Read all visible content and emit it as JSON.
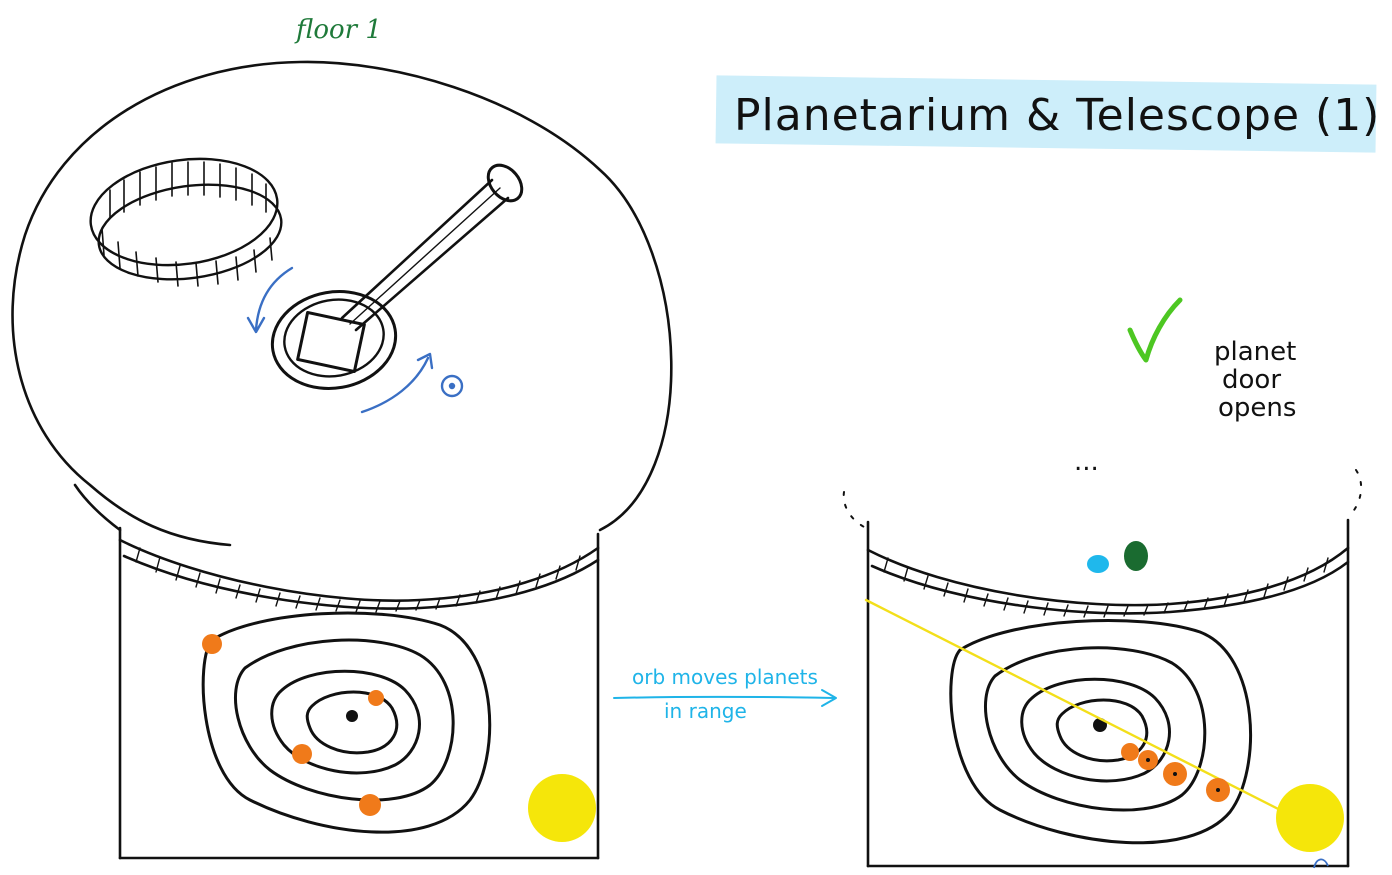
{
  "title": "Planetarium & Telescope (1)",
  "floor_label": "floor 1",
  "arrow_caption": {
    "line1": "orb moves planets",
    "line2": "in range"
  },
  "result_note": {
    "line1": "planet",
    "line2": "door",
    "line3": "opens"
  },
  "dots_label": "...",
  "colors": {
    "ink": "#111111",
    "floor_label": "#1f7a3a",
    "title_highlight": "#cdeefa",
    "rotation_arrows": "#3a6fc4",
    "caption": "#1fb4e8",
    "planet": "#f07a1a",
    "sun": "#f5e60a",
    "alignment_line": "#f3df1a",
    "checkmark": "#4dc722",
    "blue_dot": "#1fb8ec",
    "green_dot": "#1a6b30"
  },
  "icons": {
    "check": "check-icon",
    "rotation_left": "rotate-arrow-icon",
    "rotation_right": "rotate-arrow-icon",
    "caption_arrow": "arrow-right-icon"
  }
}
